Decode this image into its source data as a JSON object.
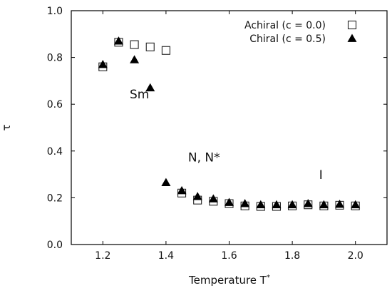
{
  "chart_data": {
    "type": "scatter",
    "xlabel": "Temperature T",
    "xlabel_sup": "*",
    "ylabel": "τ",
    "xlim": [
      1.1,
      2.1
    ],
    "ylim": [
      0.0,
      1.0
    ],
    "xticks": [
      "1.2",
      "1.4",
      "1.6",
      "1.8",
      "2.0"
    ],
    "yticks": [
      "0.0",
      "0.2",
      "0.4",
      "0.6",
      "0.8",
      "1.0"
    ],
    "grid": false,
    "legend_position": "top-right",
    "series": [
      {
        "name": "Achiral (c = 0.0)",
        "marker": "open-square",
        "points": [
          [
            1.2,
            0.76
          ],
          [
            1.25,
            0.865
          ],
          [
            1.3,
            0.855
          ],
          [
            1.35,
            0.845
          ],
          [
            1.4,
            0.83
          ],
          [
            1.45,
            0.22
          ],
          [
            1.5,
            0.19
          ],
          [
            1.55,
            0.185
          ],
          [
            1.6,
            0.175
          ],
          [
            1.65,
            0.165
          ],
          [
            1.7,
            0.163
          ],
          [
            1.75,
            0.163
          ],
          [
            1.8,
            0.165
          ],
          [
            1.85,
            0.17
          ],
          [
            1.9,
            0.165
          ],
          [
            1.95,
            0.168
          ],
          [
            2.0,
            0.165
          ]
        ]
      },
      {
        "name": "Chiral (c = 0.5)",
        "marker": "filled-triangle",
        "points": [
          [
            1.2,
            0.77
          ],
          [
            1.25,
            0.87
          ],
          [
            1.3,
            0.79
          ],
          [
            1.35,
            0.67
          ],
          [
            1.4,
            0.265
          ],
          [
            1.45,
            0.23
          ],
          [
            1.5,
            0.205
          ],
          [
            1.55,
            0.195
          ],
          [
            1.6,
            0.18
          ],
          [
            1.65,
            0.175
          ],
          [
            1.7,
            0.17
          ],
          [
            1.75,
            0.17
          ],
          [
            1.8,
            0.17
          ],
          [
            1.85,
            0.175
          ],
          [
            1.9,
            0.17
          ],
          [
            1.95,
            0.172
          ],
          [
            2.0,
            0.17
          ]
        ]
      }
    ],
    "annotations": [
      {
        "text": "Sm",
        "x": 1.285,
        "y": 0.625
      },
      {
        "text": "N, N*",
        "x": 1.47,
        "y": 0.355
      },
      {
        "text": "I",
        "x": 1.885,
        "y": 0.28
      }
    ]
  }
}
